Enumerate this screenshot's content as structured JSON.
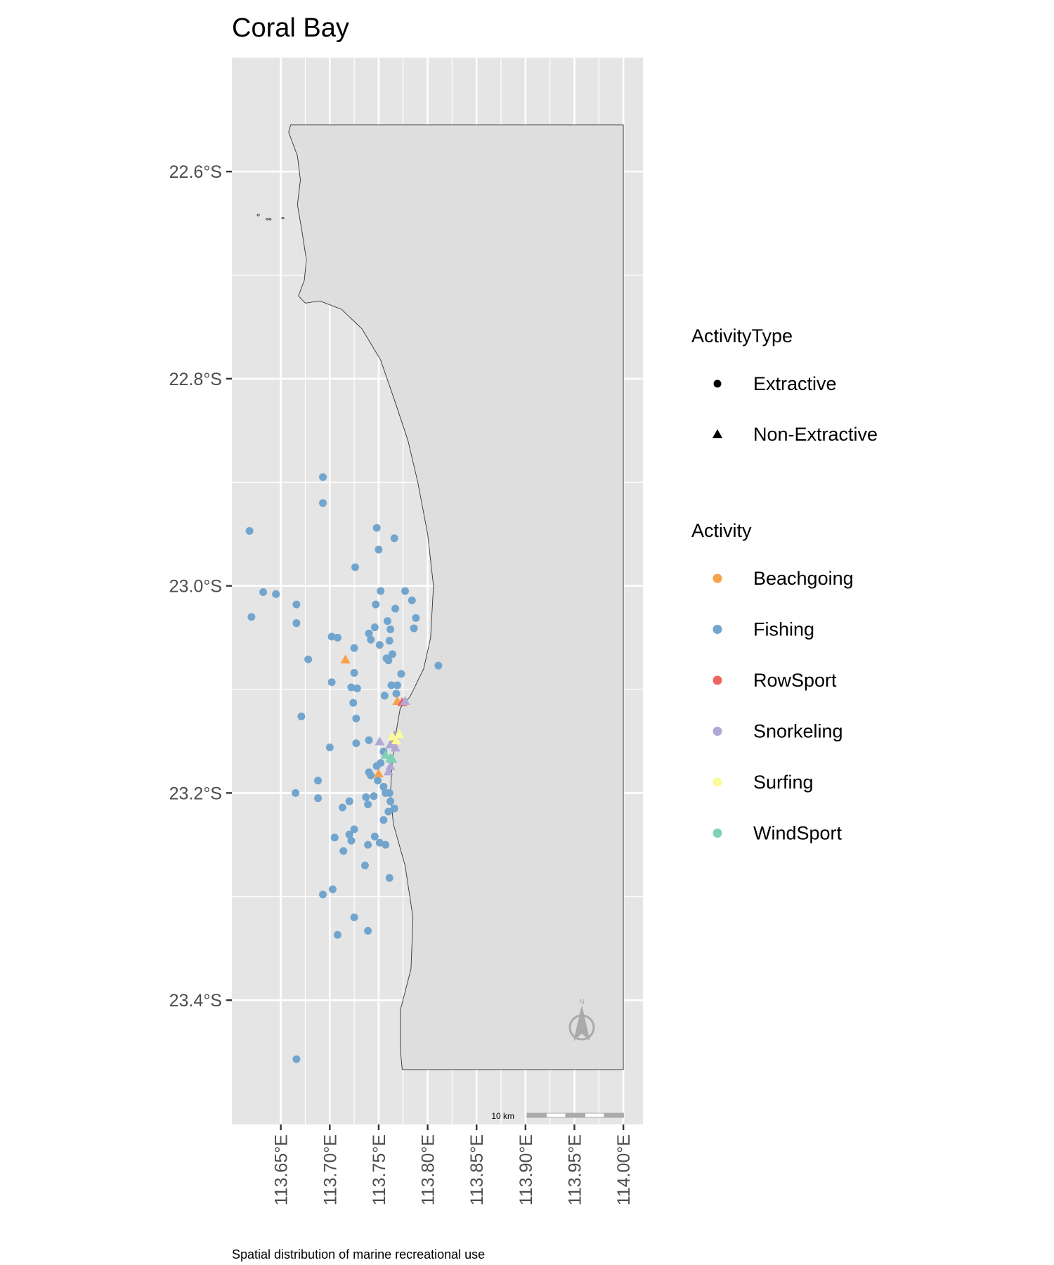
{
  "title": "Coral Bay",
  "caption": "Spatial distribution of marine recreational use",
  "legend": {
    "shape_title": "ActivityType",
    "shapes": [
      {
        "label": "Extractive",
        "shape": "circle"
      },
      {
        "label": "Non-Extractive",
        "shape": "triangle"
      }
    ],
    "color_title": "Activity",
    "colors": [
      {
        "label": "Beachgoing",
        "color": "#f9a04b"
      },
      {
        "label": "Fishing",
        "color": "#71a5ce"
      },
      {
        "label": "RowSport",
        "color": "#ed6461"
      },
      {
        "label": "Snorkeling",
        "color": "#b0a8d6"
      },
      {
        "label": "Surfing",
        "color": "#fbfb9c"
      },
      {
        "label": "WindSport",
        "color": "#7fd1b7"
      }
    ]
  },
  "scale_bar": {
    "label": "10 km"
  },
  "north_arrow": {
    "label": "N"
  },
  "colors": {
    "panel": "#e5e5e5",
    "grid": "#ffffff",
    "land": "#dedede",
    "land_stroke": "#333333"
  },
  "chart_data": {
    "type": "scatter",
    "xlim": [
      113.6,
      114.02
    ],
    "ylim": [
      -23.52,
      -22.49
    ],
    "x_ticks": [
      {
        "value": 113.65,
        "label": "113.65°E"
      },
      {
        "value": 113.7,
        "label": "113.70°E"
      },
      {
        "value": 113.75,
        "label": "113.75°E"
      },
      {
        "value": 113.8,
        "label": "113.80°E"
      },
      {
        "value": 113.85,
        "label": "113.85°E"
      },
      {
        "value": 113.9,
        "label": "113.90°E"
      },
      {
        "value": 113.95,
        "label": "113.95°E"
      },
      {
        "value": 114.0,
        "label": "114.00°E"
      }
    ],
    "y_ticks": [
      {
        "value": -22.6,
        "label": "22.6°S"
      },
      {
        "value": -22.8,
        "label": "22.8°S"
      },
      {
        "value": -23.0,
        "label": "23.0°S"
      },
      {
        "value": -23.2,
        "label": "23.2°S"
      },
      {
        "value": -23.4,
        "label": "23.4°S"
      }
    ],
    "coastline": [
      [
        113.658,
        -22.562
      ],
      [
        113.667,
        -22.585
      ],
      [
        113.67,
        -22.608
      ],
      [
        113.667,
        -22.632
      ],
      [
        113.672,
        -22.66
      ],
      [
        113.676,
        -22.685
      ],
      [
        113.674,
        -22.705
      ],
      [
        113.668,
        -22.72
      ],
      [
        113.675,
        -22.727
      ],
      [
        113.69,
        -22.725
      ],
      [
        113.712,
        -22.733
      ],
      [
        113.733,
        -22.752
      ],
      [
        113.752,
        -22.782
      ],
      [
        113.767,
        -22.823
      ],
      [
        113.78,
        -22.86
      ],
      [
        113.79,
        -22.9
      ],
      [
        113.8,
        -22.95
      ],
      [
        113.806,
        -23.0
      ],
      [
        113.803,
        -23.05
      ],
      [
        113.796,
        -23.08
      ],
      [
        113.782,
        -23.107
      ],
      [
        113.772,
        -23.118
      ],
      [
        113.768,
        -23.14
      ],
      [
        113.764,
        -23.168
      ],
      [
        113.762,
        -23.2
      ],
      [
        113.765,
        -23.23
      ],
      [
        113.777,
        -23.27
      ],
      [
        113.785,
        -23.32
      ],
      [
        113.783,
        -23.37
      ],
      [
        113.772,
        -23.41
      ],
      [
        113.772,
        -23.447
      ],
      [
        113.774,
        -23.467
      ],
      [
        114.0,
        -23.467
      ],
      [
        114.0,
        -22.555
      ],
      [
        113.66,
        -22.555
      ]
    ],
    "islets": [
      [
        113.627,
        -22.642
      ],
      [
        113.636,
        -22.646
      ],
      [
        113.639,
        -22.646
      ],
      [
        113.652,
        -22.645
      ]
    ],
    "series": [
      {
        "name": "Fishing",
        "shape": "circle",
        "points": [
          [
            113.693,
            -22.895
          ],
          [
            113.693,
            -22.92
          ],
          [
            113.618,
            -22.947
          ],
          [
            113.748,
            -22.944
          ],
          [
            113.766,
            -22.954
          ],
          [
            113.75,
            -22.965
          ],
          [
            113.726,
            -22.982
          ],
          [
            113.62,
            -23.03
          ],
          [
            113.632,
            -23.006
          ],
          [
            113.645,
            -23.008
          ],
          [
            113.666,
            -23.018
          ],
          [
            113.666,
            -23.036
          ],
          [
            113.752,
            -23.005
          ],
          [
            113.777,
            -23.005
          ],
          [
            113.784,
            -23.014
          ],
          [
            113.747,
            -23.018
          ],
          [
            113.767,
            -23.022
          ],
          [
            113.788,
            -23.031
          ],
          [
            113.786,
            -23.041
          ],
          [
            113.759,
            -23.034
          ],
          [
            113.762,
            -23.042
          ],
          [
            113.761,
            -23.053
          ],
          [
            113.746,
            -23.04
          ],
          [
            113.74,
            -23.046
          ],
          [
            113.742,
            -23.052
          ],
          [
            113.751,
            -23.057
          ],
          [
            113.702,
            -23.049
          ],
          [
            113.708,
            -23.05
          ],
          [
            113.725,
            -23.06
          ],
          [
            113.678,
            -23.071
          ],
          [
            113.764,
            -23.066
          ],
          [
            113.758,
            -23.07
          ],
          [
            113.76,
            -23.072
          ],
          [
            113.811,
            -23.077
          ],
          [
            113.725,
            -23.084
          ],
          [
            113.773,
            -23.085
          ],
          [
            113.702,
            -23.093
          ],
          [
            113.722,
            -23.098
          ],
          [
            113.728,
            -23.099
          ],
          [
            113.763,
            -23.096
          ],
          [
            113.769,
            -23.096
          ],
          [
            113.768,
            -23.104
          ],
          [
            113.756,
            -23.106
          ],
          [
            113.724,
            -23.113
          ],
          [
            113.671,
            -23.126
          ],
          [
            113.727,
            -23.128
          ],
          [
            113.74,
            -23.149
          ],
          [
            113.727,
            -23.152
          ],
          [
            113.7,
            -23.156
          ],
          [
            113.755,
            -23.16
          ],
          [
            113.752,
            -23.171
          ],
          [
            113.748,
            -23.174
          ],
          [
            113.74,
            -23.18
          ],
          [
            113.742,
            -23.183
          ],
          [
            113.749,
            -23.188
          ],
          [
            113.688,
            -23.188
          ],
          [
            113.755,
            -23.194
          ],
          [
            113.665,
            -23.2
          ],
          [
            113.757,
            -23.2
          ],
          [
            113.761,
            -23.2
          ],
          [
            113.745,
            -23.203
          ],
          [
            113.737,
            -23.204
          ],
          [
            113.688,
            -23.205
          ],
          [
            113.72,
            -23.208
          ],
          [
            113.762,
            -23.208
          ],
          [
            113.739,
            -23.211
          ],
          [
            113.713,
            -23.214
          ],
          [
            113.766,
            -23.215
          ],
          [
            113.76,
            -23.218
          ],
          [
            113.755,
            -23.226
          ],
          [
            113.725,
            -23.235
          ],
          [
            113.72,
            -23.24
          ],
          [
            113.746,
            -23.242
          ],
          [
            113.705,
            -23.243
          ],
          [
            113.722,
            -23.246
          ],
          [
            113.751,
            -23.248
          ],
          [
            113.739,
            -23.25
          ],
          [
            113.757,
            -23.25
          ],
          [
            113.714,
            -23.256
          ],
          [
            113.736,
            -23.27
          ],
          [
            113.761,
            -23.282
          ],
          [
            113.703,
            -23.293
          ],
          [
            113.693,
            -23.298
          ],
          [
            113.725,
            -23.32
          ],
          [
            113.739,
            -23.333
          ],
          [
            113.708,
            -23.337
          ],
          [
            113.666,
            -23.457
          ]
        ]
      },
      {
        "name": "Beachgoing",
        "shape": "triangle",
        "points": [
          [
            113.716,
            -23.072
          ],
          [
            113.75,
            -23.182
          ],
          [
            113.769,
            -23.112
          ],
          [
            113.765,
            -23.153
          ]
        ]
      },
      {
        "name": "RowSport",
        "shape": "triangle",
        "points": [
          [
            113.774,
            -23.113
          ]
        ]
      },
      {
        "name": "Snorkeling",
        "shape": "triangle",
        "points": [
          [
            113.777,
            -23.112
          ],
          [
            113.751,
            -23.151
          ],
          [
            113.767,
            -23.157
          ],
          [
            113.762,
            -23.154
          ],
          [
            113.762,
            -23.175
          ],
          [
            113.76,
            -23.18
          ],
          [
            113.763,
            -23.168
          ],
          [
            113.766,
            -23.145
          ]
        ]
      },
      {
        "name": "Surfing",
        "shape": "triangle",
        "points": [
          [
            113.771,
            -23.144
          ],
          [
            113.764,
            -23.146
          ],
          [
            113.768,
            -23.15
          ]
        ]
      },
      {
        "name": "WindSport",
        "shape": "triangle",
        "points": [
          [
            113.757,
            -23.164
          ],
          [
            113.762,
            -23.167
          ],
          [
            113.764,
            -23.168
          ]
        ]
      }
    ]
  }
}
